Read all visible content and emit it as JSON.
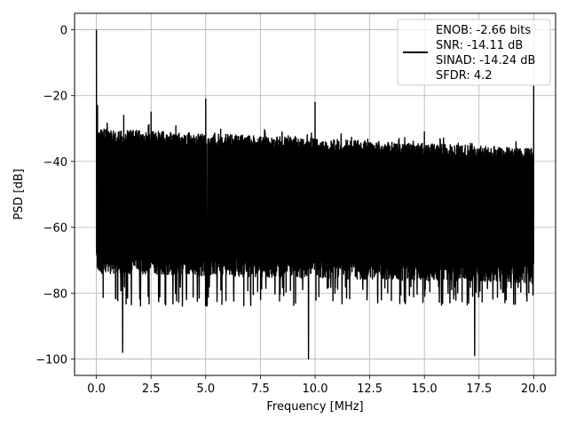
{
  "chart_data": {
    "type": "line",
    "title": "",
    "xlabel": "Frequency [MHz]",
    "ylabel": "PSD [dB]",
    "xlim": [
      -1.0,
      21.0
    ],
    "ylim": [
      -105,
      5
    ],
    "x_ticks": [
      0.0,
      2.5,
      5.0,
      7.5,
      10.0,
      12.5,
      15.0,
      17.5,
      20.0
    ],
    "x_tick_labels": [
      "0.0",
      "2.5",
      "5.0",
      "7.5",
      "10.0",
      "12.5",
      "15.0",
      "17.5",
      "20.0"
    ],
    "y_ticks": [
      0,
      -20,
      -40,
      -60,
      -80,
      -100
    ],
    "y_tick_labels": [
      "0",
      "−20",
      "−40",
      "−60",
      "−80",
      "−100"
    ],
    "grid": true,
    "legend_position": "top-right",
    "line_color": "#000000",
    "series": [
      {
        "name": "ENOB: -2.66 bits\nSNR: -14.11 dB\nSINAD: -14.24 dB\nSFDR: 4.2",
        "x_range": [
          0.0,
          20.0
        ],
        "noise_band": {
          "upper_start": -30,
          "upper_end": -36,
          "lower_start": -74,
          "lower_end": -77,
          "floor_dips_to": -84
        },
        "peaks": [
          {
            "x": 0.0,
            "y": 0
          },
          {
            "x": 0.05,
            "y": -23
          },
          {
            "x": 1.25,
            "y": -26
          },
          {
            "x": 1.2,
            "y": -98
          },
          {
            "x": 2.5,
            "y": -25
          },
          {
            "x": 5.0,
            "y": -21
          },
          {
            "x": 9.7,
            "y": -100
          },
          {
            "x": 10.0,
            "y": -22
          },
          {
            "x": 15.0,
            "y": -31
          },
          {
            "x": 17.3,
            "y": -99
          },
          {
            "x": 20.0,
            "y": -17
          }
        ]
      }
    ]
  },
  "legend": {
    "lines": [
      "ENOB: -2.66 bits",
      "SNR: -14.11 dB",
      "SINAD: -14.24 dB",
      "SFDR: 4.2"
    ]
  }
}
